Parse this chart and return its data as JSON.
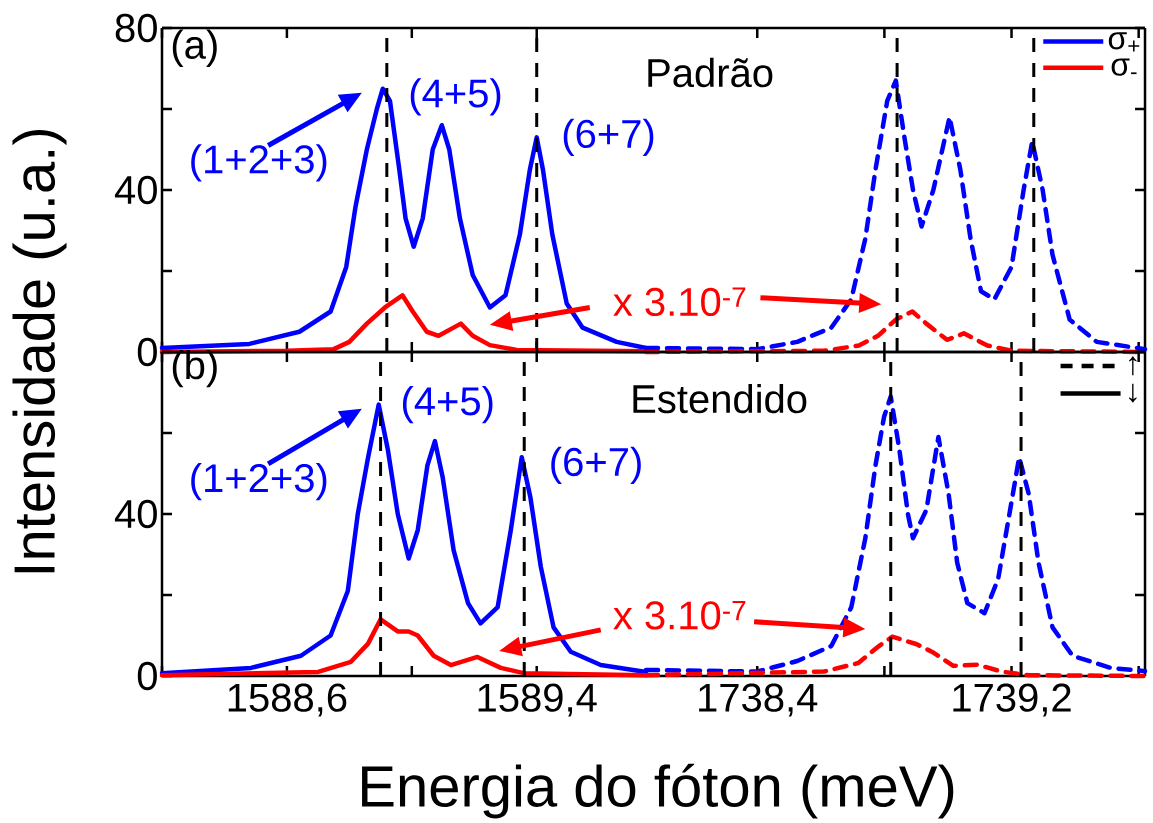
{
  "chart_data": [
    {
      "type": "line",
      "ylabel": "Intensidade (u.a.)",
      "line_style": "solid",
      "xlim": [
        1588.2,
        1589.75
      ],
      "ylim": [
        0,
        80
      ],
      "xticks": [
        {
          "value": 1588.2,
          "label": null
        },
        {
          "value": 1588.6,
          "label": null
        },
        {
          "value": 1589.0,
          "label": null
        },
        {
          "value": 1589.4,
          "label": null
        }
      ],
      "yticks": [
        0,
        {
          "value": 20,
          "label": null
        },
        40,
        {
          "value": 60,
          "label": null
        },
        80
      ],
      "tick_labels": "y",
      "annotations": [
        "(a)",
        "(1+2+3)",
        "(4+5)",
        "(6+7)"
      ],
      "ref_lines": [
        {
          "axis": "x",
          "value": 1588.92,
          "color": "#000000",
          "line_style": "dashed"
        },
        {
          "axis": "x",
          "value": 1589.4,
          "color": "#000000",
          "line_style": "dashed"
        }
      ],
      "series": [
        {
          "color": "#0000ff",
          "x": [
            1588.2,
            1588.48,
            1588.64,
            1588.74,
            1588.79,
            1588.82,
            1588.856,
            1588.888,
            1588.907,
            1588.93,
            1588.96,
            1588.98,
            1589.006,
            1589.035,
            1589.067,
            1589.096,
            1589.12,
            1589.154,
            1589.195,
            1589.25,
            1589.3,
            1589.346,
            1589.378,
            1589.4,
            1589.42,
            1589.45,
            1589.496,
            1589.547,
            1589.656,
            1589.75
          ],
          "values": [
            1,
            2,
            5,
            10,
            21,
            36,
            50,
            60,
            65,
            62,
            45,
            33,
            26,
            33,
            50,
            56,
            50,
            33,
            19,
            11,
            14,
            29,
            45,
            53,
            45,
            29,
            12,
            6,
            2.5,
            1
          ]
        },
        {
          "color": "#ff0000",
          "x": [
            1588.2,
            1588.6,
            1588.75,
            1588.8,
            1588.856,
            1588.914,
            1588.97,
            1589.003,
            1589.048,
            1589.086,
            1589.157,
            1589.195,
            1589.25,
            1589.336,
            1589.75
          ],
          "values": [
            0,
            0.3,
            0.7,
            2.5,
            7,
            11,
            14,
            10,
            5,
            4,
            7,
            4,
            1.7,
            0.5,
            0.2
          ]
        }
      ]
    },
    {
      "type": "line",
      "line_style": "dashed",
      "xlim": [
        1738.05,
        1739.62
      ],
      "ylim": [
        0,
        80
      ],
      "xticks": [
        {
          "value": 1738.4,
          "label": null
        },
        {
          "value": 1738.8,
          "label": null
        },
        {
          "value": 1739.2,
          "label": null
        },
        {
          "value": 1739.6,
          "label": null
        }
      ],
      "yticks": [
        0,
        20,
        40,
        60,
        80
      ],
      "tick_labels": false,
      "legend": "top right",
      "annotations": [
        "Padrão",
        "x 3.10$^{-7}$"
      ],
      "ref_lines": [
        {
          "axis": "x",
          "value": 1738.84,
          "color": "#000000",
          "line_style": "dashed"
        },
        {
          "axis": "x",
          "value": 1739.27,
          "color": "#000000",
          "line_style": "dashed"
        }
      ],
      "series": [
        {
          "name": "σ$_{+}$",
          "color": "#0000ff",
          "x": [
            1738.05,
            1738.4,
            1738.526,
            1738.633,
            1738.696,
            1738.74,
            1738.772,
            1738.809,
            1738.836,
            1738.863,
            1738.89,
            1738.917,
            1738.954,
            1739.005,
            1739.039,
            1739.071,
            1739.104,
            1739.146,
            1739.2,
            1739.238,
            1739.265,
            1739.298,
            1739.329,
            1739.383,
            1739.468,
            1739.62
          ],
          "values": [
            1,
            0.7,
            2.5,
            6,
            13,
            28,
            45,
            62,
            67,
            53,
            40,
            31,
            40,
            58,
            45,
            28,
            15,
            13,
            21,
            40,
            52,
            40,
            24,
            8,
            2.5,
            0.7
          ]
        },
        {
          "name": "σ$_{-}$",
          "color": "#ff0000",
          "x": [
            1738.05,
            1738.61,
            1738.72,
            1738.78,
            1738.836,
            1738.888,
            1738.932,
            1738.997,
            1739.05,
            1739.124,
            1739.2,
            1739.62
          ],
          "values": [
            0,
            0.3,
            1.6,
            4,
            8,
            10,
            7,
            3,
            4.6,
            1.6,
            0.3,
            0
          ]
        }
      ]
    },
    {
      "type": "line",
      "xlabel": "Energia do fóton (meV)",
      "line_style": "solid",
      "xlim": [
        1588.2,
        1589.75
      ],
      "ylim": [
        0,
        80
      ],
      "xticks": [
        {
          "value": 1588.2,
          "label": null
        },
        {
          "value": 1588.6,
          "label": "1588,6"
        },
        {
          "value": 1589.0,
          "label": null
        },
        {
          "value": 1589.4,
          "label": "1589,4"
        }
      ],
      "yticks": [
        0,
        {
          "value": 20,
          "label": null
        },
        40,
        {
          "value": 60,
          "label": null
        },
        {
          "value": 80,
          "label": null
        }
      ],
      "annotations": [
        "(b)",
        "(1+2+3)",
        "(4+5)",
        "(6+7)"
      ],
      "ref_lines": [
        {
          "axis": "x",
          "value": 1588.9,
          "color": "#000000",
          "line_style": "dashed"
        },
        {
          "axis": "x",
          "value": 1589.36,
          "color": "#000000",
          "line_style": "dashed"
        }
      ],
      "series": [
        {
          "color": "#0000ff",
          "x": [
            1588.2,
            1588.485,
            1588.645,
            1588.74,
            1588.795,
            1588.827,
            1588.86,
            1588.894,
            1588.923,
            1588.955,
            1588.99,
            1589.019,
            1589.05,
            1589.074,
            1589.099,
            1589.134,
            1589.18,
            1589.22,
            1589.275,
            1589.317,
            1589.352,
            1589.38,
            1589.413,
            1589.454,
            1589.509,
            1589.605,
            1589.75
          ],
          "values": [
            0.7,
            2,
            5,
            10,
            21,
            40,
            54,
            67,
            56,
            40,
            29,
            36,
            52,
            58,
            49,
            31,
            18,
            13,
            17,
            36,
            54,
            44,
            27,
            12,
            6,
            2.7,
            1
          ]
        },
        {
          "color": "#ff0000",
          "x": [
            1588.2,
            1588.7,
            1588.805,
            1588.86,
            1588.9,
            1588.955,
            1588.99,
            1589.019,
            1589.07,
            1589.125,
            1589.21,
            1589.285,
            1589.358,
            1589.75
          ],
          "values": [
            0.2,
            1,
            3.5,
            8,
            14,
            11,
            11,
            10,
            5,
            2.7,
            4.7,
            2,
            0.7,
            0.2
          ]
        }
      ]
    },
    {
      "type": "line",
      "line_style": "dashed",
      "xlim": [
        1738.05,
        1739.62
      ],
      "ylim": [
        0,
        80
      ],
      "xticks": [
        {
          "value": 1738.4,
          "label": "1738,4"
        },
        {
          "value": 1738.8,
          "label": null
        },
        {
          "value": 1739.2,
          "label": "1739,2"
        },
        {
          "value": 1739.6,
          "label": null
        }
      ],
      "yticks": [
        0,
        20,
        40,
        60,
        {
          "value": 80,
          "label": null
        }
      ],
      "tick_labels": "x",
      "legend": "top right",
      "annotations": [
        "Estendido",
        "x 3.10$^{-7}$",
        "↑",
        "↓"
      ],
      "ref_lines": [
        {
          "axis": "x",
          "value": 1738.82,
          "color": "#000000",
          "line_style": "dashed"
        },
        {
          "axis": "x",
          "value": 1739.23,
          "color": "#000000",
          "line_style": "dashed"
        }
      ],
      "series": [
        {
          "color": "#0000ff",
          "x": [
            1738.05,
            1738.4,
            1738.526,
            1738.633,
            1738.696,
            1738.74,
            1738.772,
            1738.799,
            1738.82,
            1738.847,
            1738.874,
            1738.89,
            1738.932,
            1738.97,
            1739.002,
            1739.029,
            1739.061,
            1739.115,
            1739.158,
            1739.2,
            1739.224,
            1739.254,
            1739.285,
            1739.329,
            1739.392,
            1739.512,
            1739.62
          ],
          "values": [
            1.5,
            1.1,
            3.7,
            7.4,
            17,
            34,
            52,
            64,
            69,
            56,
            40,
            34,
            41,
            59,
            45,
            28,
            18,
            15.5,
            24,
            43,
            54,
            45,
            28,
            12,
            5,
            2,
            1.2
          ]
        },
        {
          "color": "#ff0000",
          "x": [
            1738.05,
            1738.61,
            1738.718,
            1738.783,
            1738.825,
            1738.9,
            1738.954,
            1739.017,
            1739.093,
            1739.168,
            1739.254,
            1739.62
          ],
          "values": [
            0.2,
            1.1,
            3.2,
            7.4,
            9.7,
            7.9,
            5.8,
            2.5,
            2.8,
            1.1,
            0.2,
            0
          ]
        }
      ]
    }
  ]
}
